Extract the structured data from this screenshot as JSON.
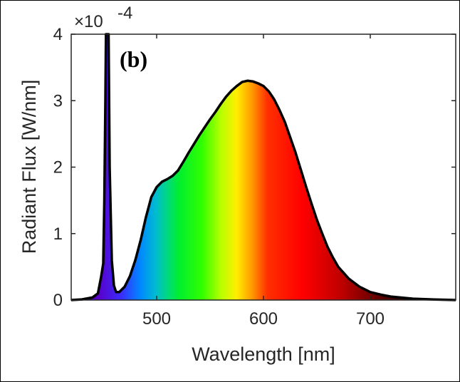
{
  "chart_data": {
    "type": "area",
    "panel_label": "(b)",
    "xlabel": "Wavelength [nm]",
    "ylabel": "Radiant Flux [W/nm]",
    "y_exponent_label": "×10",
    "y_exponent_power": "-4",
    "xlim": [
      420,
      780
    ],
    "ylim": [
      0,
      4
    ],
    "xticks": [
      500,
      600,
      700
    ],
    "yticks": [
      0,
      1,
      2,
      3,
      4
    ],
    "grid": false,
    "legend": "none",
    "fill": "visible-spectrum color gradient under the curve",
    "series": [
      {
        "x": [
          420,
          430,
          440,
          445,
          448,
          450,
          451,
          452,
          452.5,
          453,
          453.5,
          454,
          455,
          456,
          458,
          460,
          462,
          465,
          470,
          475,
          480,
          485,
          490,
          495,
          500,
          505,
          510,
          515,
          520,
          525,
          530,
          535,
          540,
          545,
          550,
          555,
          560,
          565,
          570,
          575,
          580,
          585,
          590,
          595,
          600,
          605,
          610,
          615,
          620,
          625,
          630,
          635,
          640,
          645,
          650,
          655,
          660,
          665,
          670,
          680,
          690,
          700,
          710,
          720,
          740,
          760,
          780
        ],
        "y": [
          0.0,
          0.01,
          0.04,
          0.1,
          0.35,
          0.55,
          1.5,
          3.0,
          4.0,
          4.0,
          4.0,
          4.0,
          4.0,
          2.0,
          0.6,
          0.22,
          0.12,
          0.12,
          0.2,
          0.36,
          0.6,
          0.9,
          1.25,
          1.55,
          1.7,
          1.78,
          1.82,
          1.87,
          1.95,
          2.08,
          2.22,
          2.35,
          2.48,
          2.6,
          2.72,
          2.83,
          2.95,
          3.06,
          3.15,
          3.22,
          3.28,
          3.3,
          3.29,
          3.26,
          3.22,
          3.14,
          3.02,
          2.86,
          2.68,
          2.45,
          2.22,
          1.96,
          1.7,
          1.45,
          1.21,
          1.0,
          0.8,
          0.64,
          0.5,
          0.32,
          0.2,
          0.12,
          0.08,
          0.05,
          0.02,
          0.008,
          0.0
        ]
      }
    ]
  }
}
